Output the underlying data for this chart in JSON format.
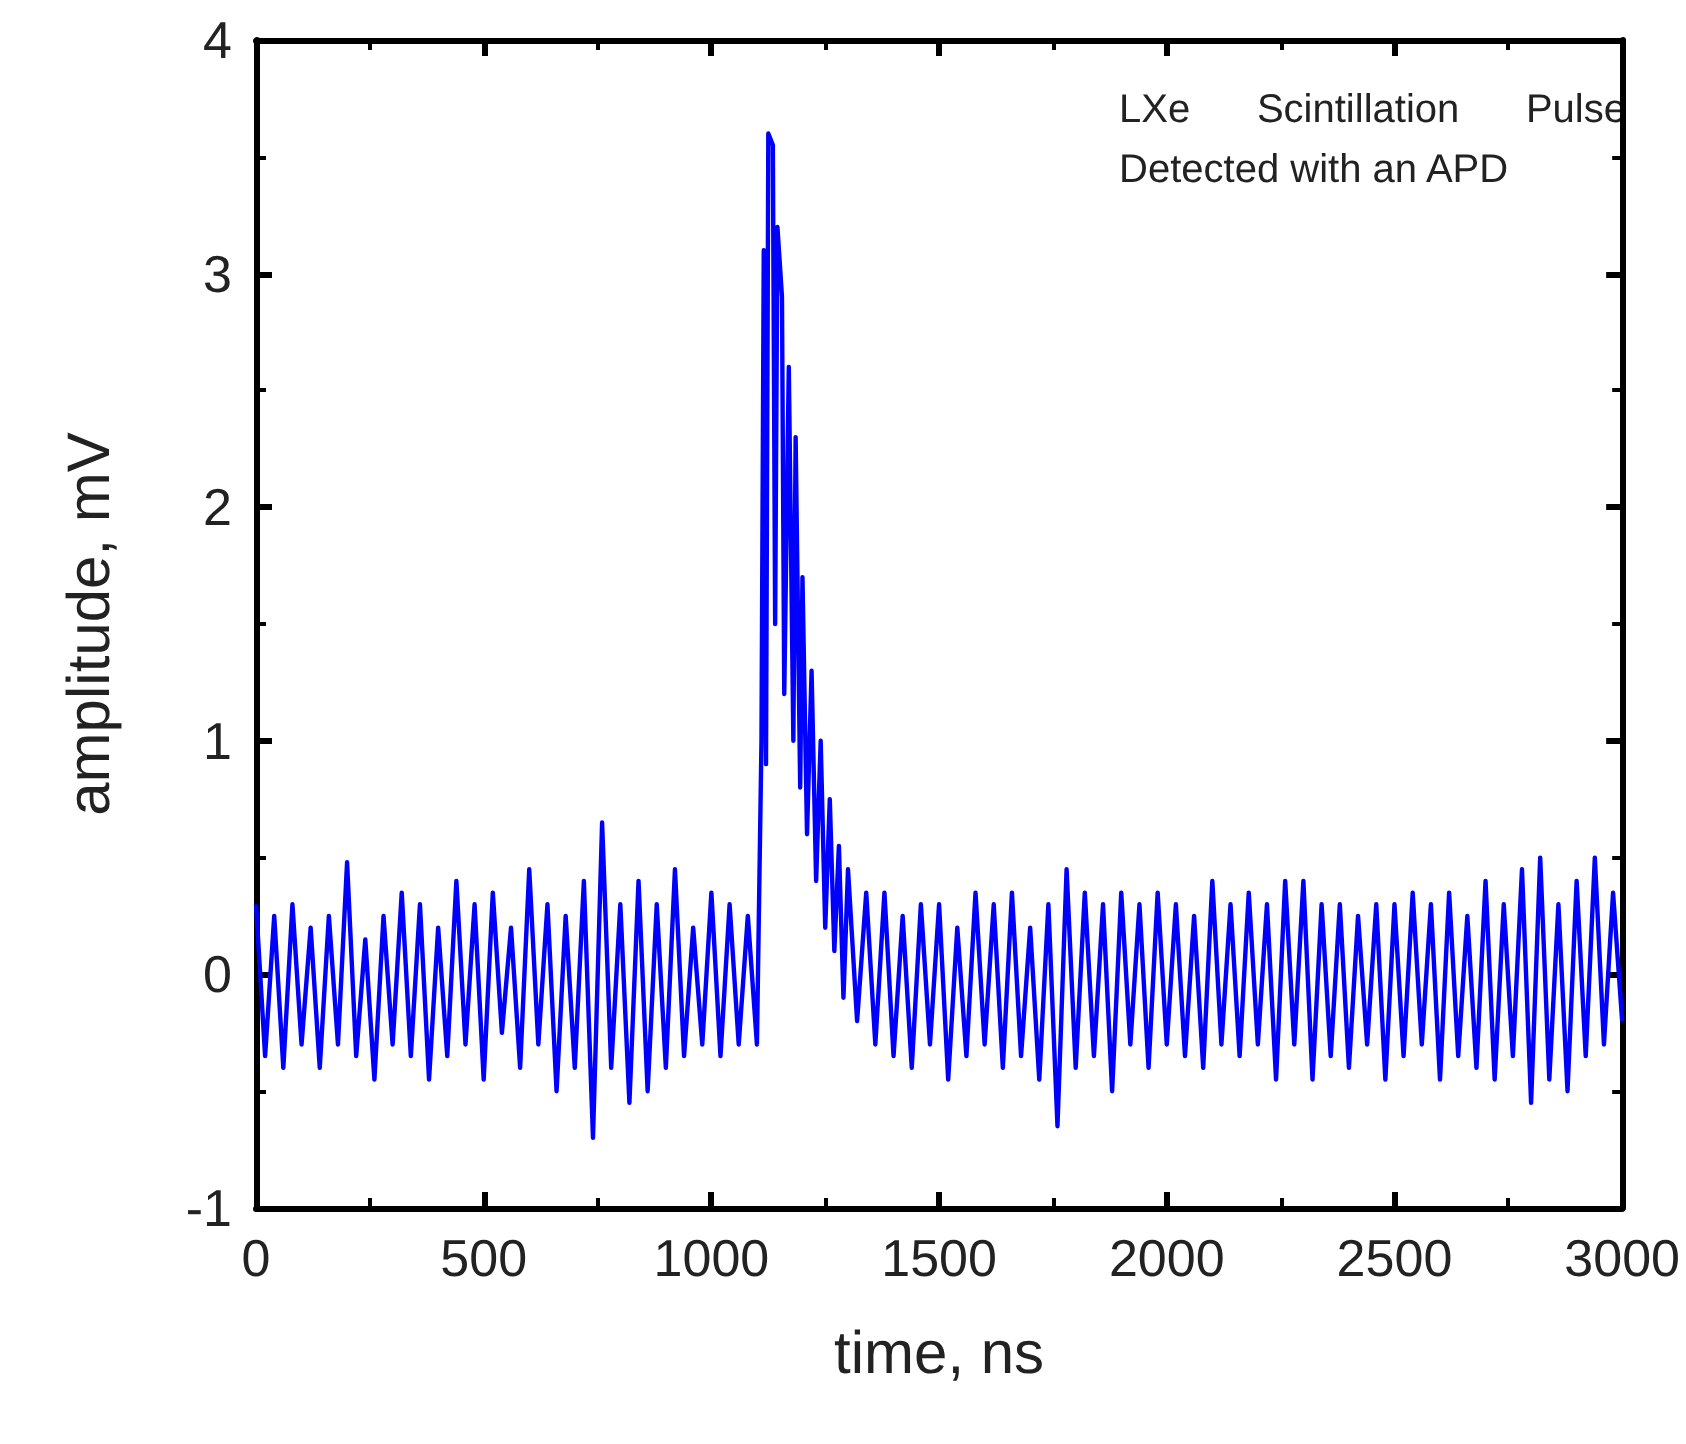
{
  "chart_data": {
    "type": "line",
    "xlabel": "time, ns",
    "ylabel": "amplitude, mV",
    "annotations": [
      "LXe      Scintillation      Pulse\nDetected with an APD"
    ],
    "xlim": [
      0,
      3000
    ],
    "xticks": [
      0,
      500,
      1000,
      1500,
      2000,
      2500,
      3000
    ],
    "ylim": [
      -1,
      4
    ],
    "yticks": [
      -1,
      0,
      1,
      2,
      3,
      4
    ],
    "grid": false,
    "marker": "none",
    "line_style": "solid",
    "series": [
      {
        "color": "#0000ff",
        "x": [
          0,
          20,
          40,
          60,
          80,
          100,
          120,
          140,
          160,
          180,
          200,
          220,
          240,
          260,
          280,
          300,
          320,
          340,
          360,
          380,
          400,
          420,
          440,
          460,
          480,
          500,
          520,
          540,
          560,
          580,
          600,
          620,
          640,
          660,
          680,
          700,
          720,
          740,
          760,
          780,
          800,
          820,
          840,
          860,
          880,
          900,
          920,
          940,
          960,
          980,
          1000,
          1020,
          1040,
          1060,
          1080,
          1100,
          1110,
          1115,
          1120,
          1125,
          1135,
          1140,
          1145,
          1155,
          1160,
          1170,
          1180,
          1185,
          1195,
          1200,
          1210,
          1220,
          1230,
          1240,
          1250,
          1260,
          1270,
          1280,
          1290,
          1300,
          1320,
          1340,
          1360,
          1380,
          1400,
          1420,
          1440,
          1460,
          1480,
          1500,
          1520,
          1540,
          1560,
          1580,
          1600,
          1620,
          1640,
          1660,
          1680,
          1700,
          1720,
          1740,
          1760,
          1780,
          1800,
          1820,
          1840,
          1860,
          1880,
          1900,
          1920,
          1940,
          1960,
          1980,
          2000,
          2020,
          2040,
          2060,
          2080,
          2100,
          2120,
          2140,
          2160,
          2180,
          2200,
          2220,
          2240,
          2260,
          2280,
          2300,
          2320,
          2340,
          2360,
          2380,
          2400,
          2420,
          2440,
          2460,
          2480,
          2500,
          2520,
          2540,
          2560,
          2580,
          2600,
          2620,
          2640,
          2660,
          2680,
          2700,
          2720,
          2740,
          2760,
          2780,
          2800,
          2820,
          2840,
          2860,
          2880,
          2900,
          2920,
          2940,
          2960,
          2980,
          3000
        ],
        "values": [
          0.3,
          -0.35,
          0.25,
          -0.4,
          0.3,
          -0.3,
          0.2,
          -0.4,
          0.25,
          -0.3,
          0.48,
          -0.35,
          0.15,
          -0.45,
          0.25,
          -0.3,
          0.35,
          -0.35,
          0.3,
          -0.45,
          0.2,
          -0.35,
          0.4,
          -0.3,
          0.3,
          -0.45,
          0.35,
          -0.25,
          0.2,
          -0.4,
          0.45,
          -0.3,
          0.3,
          -0.5,
          0.25,
          -0.4,
          0.4,
          -0.7,
          0.65,
          -0.4,
          0.3,
          -0.55,
          0.4,
          -0.5,
          0.3,
          -0.4,
          0.45,
          -0.35,
          0.2,
          -0.3,
          0.35,
          -0.35,
          0.3,
          -0.3,
          0.25,
          -0.3,
          1.0,
          3.1,
          0.9,
          3.6,
          3.55,
          1.5,
          3.2,
          2.9,
          1.2,
          2.6,
          1.0,
          2.3,
          0.8,
          1.7,
          0.6,
          1.3,
          0.4,
          1.0,
          0.2,
          0.75,
          0.1,
          0.55,
          -0.1,
          0.45,
          -0.2,
          0.35,
          -0.3,
          0.35,
          -0.35,
          0.25,
          -0.4,
          0.3,
          -0.3,
          0.3,
          -0.45,
          0.2,
          -0.35,
          0.35,
          -0.3,
          0.3,
          -0.4,
          0.35,
          -0.35,
          0.2,
          -0.45,
          0.3,
          -0.65,
          0.45,
          -0.4,
          0.35,
          -0.35,
          0.3,
          -0.5,
          0.35,
          -0.3,
          0.3,
          -0.4,
          0.35,
          -0.3,
          0.3,
          -0.35,
          0.25,
          -0.4,
          0.4,
          -0.3,
          0.3,
          -0.35,
          0.35,
          -0.3,
          0.3,
          -0.45,
          0.4,
          -0.3,
          0.4,
          -0.45,
          0.3,
          -0.35,
          0.3,
          -0.4,
          0.25,
          -0.3,
          0.3,
          -0.45,
          0.3,
          -0.35,
          0.35,
          -0.3,
          0.3,
          -0.45,
          0.35,
          -0.35,
          0.25,
          -0.4,
          0.4,
          -0.45,
          0.3,
          -0.35,
          0.45,
          -0.55,
          0.5,
          -0.45,
          0.3,
          -0.5,
          0.4,
          -0.35,
          0.5,
          -0.3,
          0.35,
          -0.2
        ]
      }
    ]
  }
}
